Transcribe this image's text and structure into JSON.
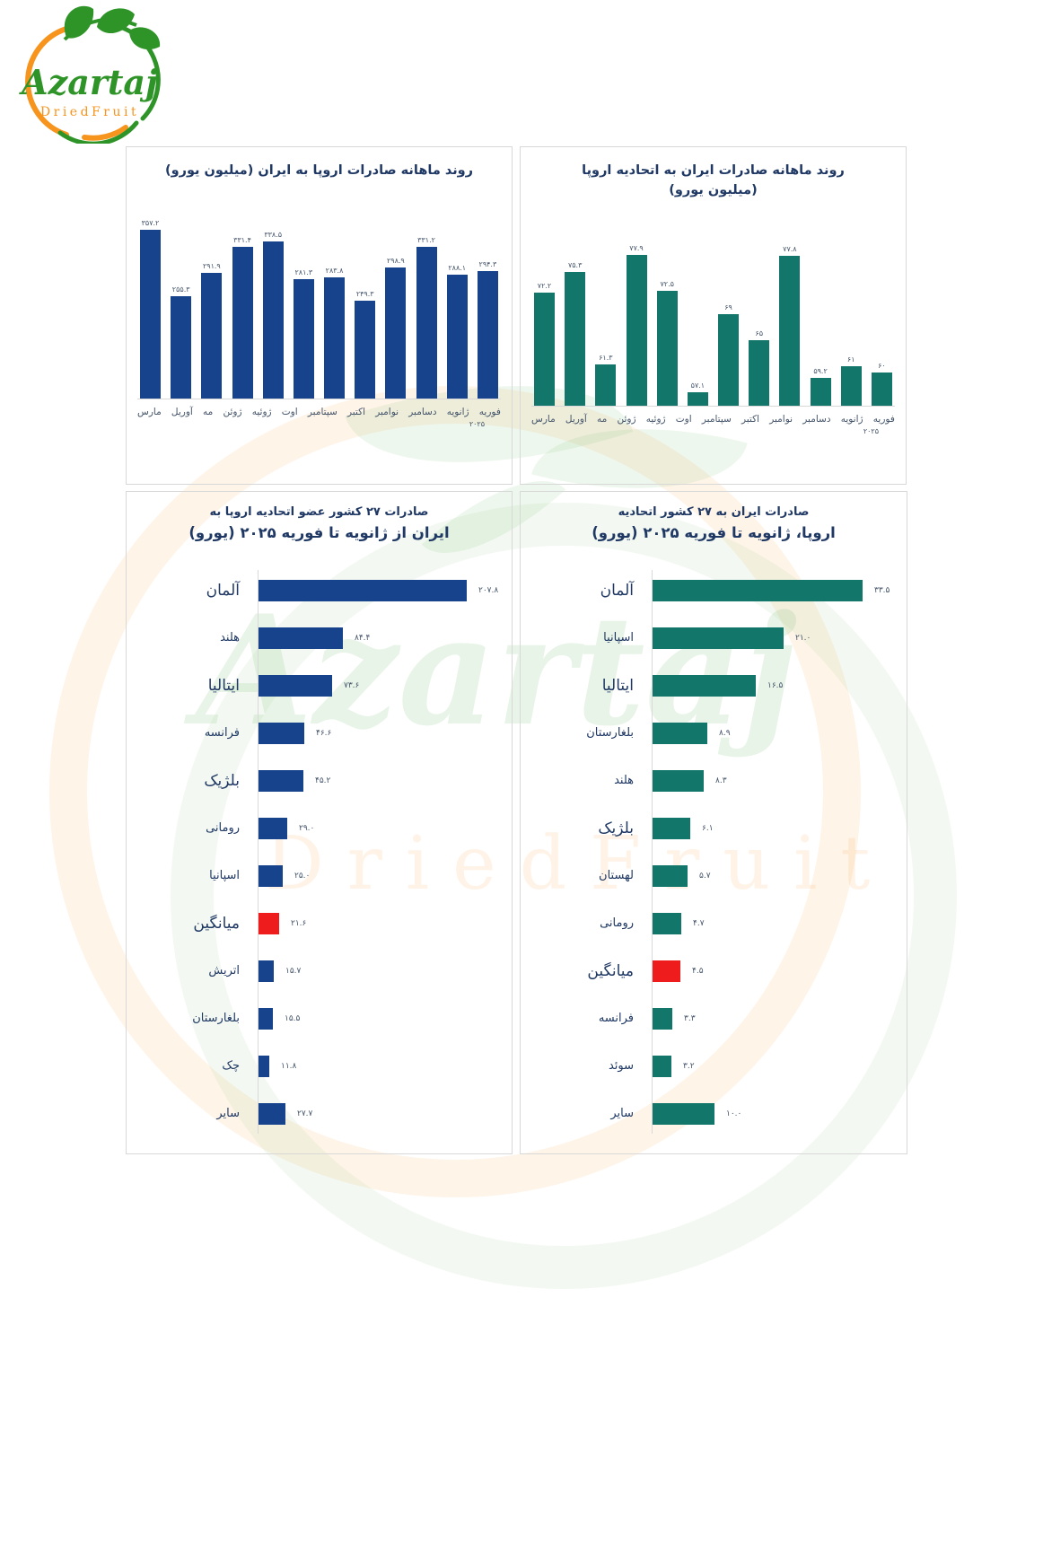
{
  "logo": {
    "brand": "Azartaj",
    "subtitle": "DriedFruit"
  },
  "watermark": {
    "script": "Azartaj",
    "subtitle": "DriedFruit"
  },
  "colors": {
    "navy_bar": "#17428c",
    "teal_bar": "#12776a",
    "highlight_red": "#ee1c1c",
    "title_navy": "#1f3864",
    "axis_label_gray": "#44546a",
    "panel_border": "#d8d8d8",
    "logo_green": "#2e9428",
    "logo_orange": "#f7941d"
  },
  "chart_data": [
    {
      "type": "bar",
      "orientation": "vertical",
      "title": "روند ماهانه صادرات اروپا به ایران (میلیون یورو)",
      "categories": [
        "مارس",
        "آوریل",
        "مه",
        "ژوئن",
        "ژوئیه",
        "اوت",
        "سپتامبر",
        "اکتبر",
        "نوامبر",
        "دسامبر",
        "ژانویه",
        "فوریه"
      ],
      "values": [
        357.2,
        255.3,
        291.9,
        331.4,
        338.5,
        281.3,
        283.8,
        249.3,
        298.9,
        331.2,
        288.1,
        294.3
      ],
      "value_labels": [
        "۳۵۷.۲",
        "۲۵۵.۳",
        "۲۹۱.۹",
        "۳۳۱.۴",
        "۳۳۸.۵",
        "۲۸۱.۳",
        "۲۸۳.۸",
        "۲۴۹.۳",
        "۲۹۸.۹",
        "۳۳۱.۲",
        "۲۸۸.۱",
        "۲۹۴.۳"
      ],
      "year_label": "۲۰۲۵",
      "bar_color": "#17428c",
      "ylim": [
        100,
        380
      ],
      "grid": false,
      "legend": false
    },
    {
      "type": "bar",
      "orientation": "vertical",
      "title": "روند ماهانه صادرات ایران به اتحادیه اروپا (میلیون یورو)",
      "categories": [
        "مارس",
        "آوریل",
        "مه",
        "ژوئن",
        "ژوئیه",
        "اوت",
        "سپتامبر",
        "اکتبر",
        "نوامبر",
        "دسامبر",
        "ژانویه",
        "فوریه"
      ],
      "values": [
        72.2,
        75.3,
        61.3,
        77.9,
        72.5,
        57.1,
        69,
        65,
        77.8,
        59.2,
        61,
        60
      ],
      "value_labels": [
        "۷۲.۲",
        "۷۵.۳",
        "۶۱.۳",
        "۷۷.۹",
        "۷۲.۵",
        "۵۷.۱",
        "۶۹",
        "۶۵",
        "۷۷.۸",
        "۵۹.۲",
        "۶۱",
        "۶۰"
      ],
      "year_label": "۲۰۲۵",
      "bar_color": "#12776a",
      "ylim": [
        55,
        80
      ],
      "grid": false,
      "legend": false
    },
    {
      "type": "bar",
      "orientation": "horizontal",
      "title_line1": "صادرات ۲۷ کشور عضو اتحادیه اروپا به",
      "title_line2": "ایران از ژانویه تا فوریه ۲۰۲۵ (یورو)",
      "categories": [
        "آلمان",
        "هلند",
        "ایتالیا",
        "فرانسه",
        "بلژیک",
        "رومانی",
        "اسپانیا",
        "میانگین",
        "اتریش",
        "بلغارستان",
        "چک",
        "سایر"
      ],
      "values": [
        207.8,
        84.4,
        73.6,
        46.6,
        45.2,
        29.0,
        25.0,
        21.6,
        15.7,
        15.5,
        11.8,
        27.7
      ],
      "value_labels": [
        "۲۰۷.۸",
        "۸۴.۴",
        "۷۳.۶",
        "۴۶.۶",
        "۴۵.۲",
        "۲۹.۰",
        "۲۵.۰",
        "۲۱.۶",
        "۱۵.۷",
        "۱۵.۵",
        "۱۱.۸",
        "۲۷.۷"
      ],
      "bar_color": "#17428c",
      "highlight_index": 7,
      "highlight_color": "#ee1c1c",
      "large_labels": [
        0,
        2,
        4,
        7
      ],
      "xlim": [
        0,
        210
      ],
      "grid": false,
      "legend": false
    },
    {
      "type": "bar",
      "orientation": "horizontal",
      "title_line1": "صادرات ایران به ۲۷ کشور اتحادیه",
      "title_line2": "اروپا، ژانویه تا فوریه ۲۰۲۵ (یورو)",
      "categories": [
        "آلمان",
        "اسپانیا",
        "ایتالیا",
        "بلغارستان",
        "هلند",
        "بلژیک",
        "لهستان",
        "رومانی",
        "میانگین",
        "فرانسه",
        "سوئد",
        "سایر"
      ],
      "values": [
        33.5,
        21.0,
        16.5,
        8.9,
        8.3,
        6.1,
        5.7,
        4.7,
        4.5,
        3.3,
        3.2,
        10.0
      ],
      "value_labels": [
        "۳۳.۵",
        "۲۱.۰",
        "۱۶.۵",
        "۸.۹",
        "۸.۳",
        "۶.۱",
        "۵.۷",
        "۴.۷",
        "۴.۵",
        "۳.۳",
        "۳.۲",
        "۱۰.۰"
      ],
      "bar_color": "#12776a",
      "highlight_index": 8,
      "highlight_color": "#ee1c1c",
      "large_labels": [
        0,
        2,
        5,
        8
      ],
      "xlim": [
        0,
        34
      ],
      "grid": false,
      "legend": false
    }
  ]
}
